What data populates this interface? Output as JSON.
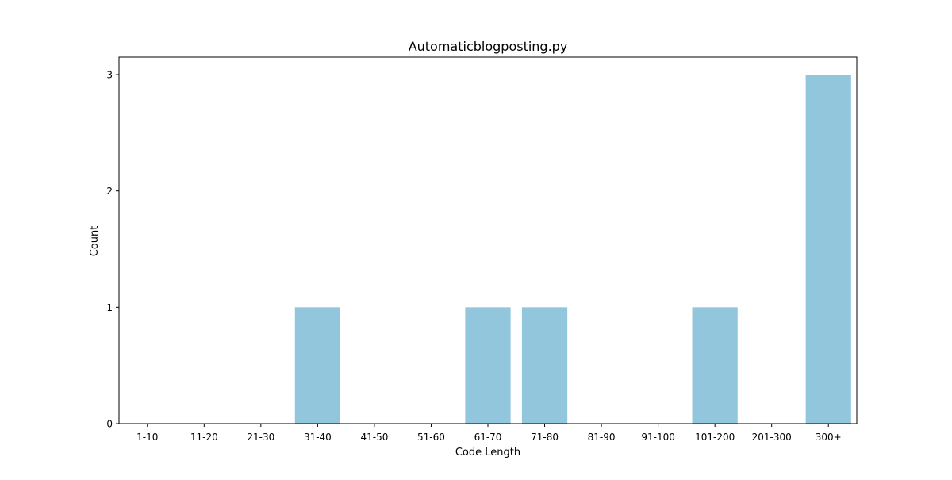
{
  "chart_data": {
    "type": "bar",
    "title": "Automaticblogposting.py",
    "xlabel": "Code Length",
    "ylabel": "Count",
    "categories": [
      "1-10",
      "11-20",
      "21-30",
      "31-40",
      "41-50",
      "51-60",
      "61-70",
      "71-80",
      "81-90",
      "91-100",
      "101-200",
      "201-300",
      "300+"
    ],
    "values": [
      0,
      0,
      0,
      1,
      0,
      0,
      1,
      1,
      0,
      0,
      1,
      0,
      3
    ],
    "ylim": [
      0,
      3.15
    ],
    "yticks": [
      0,
      1,
      2,
      3
    ],
    "bar_color": "#92c6dc",
    "grid": false,
    "legend": "none"
  }
}
